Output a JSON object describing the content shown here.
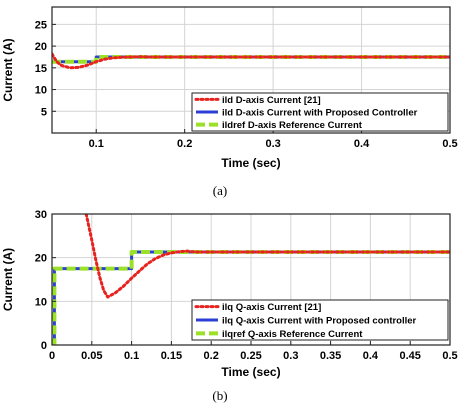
{
  "chart_data": [
    {
      "type": "line",
      "caption": "(a)",
      "xlabel": "Time (sec)",
      "ylabel": "Current (A)",
      "xlim": [
        0.05,
        0.5
      ],
      "ylim": [
        0,
        29
      ],
      "xticks": [
        0.1,
        0.2,
        0.3,
        0.4,
        0.5
      ],
      "xtick_labels": [
        "0.1",
        "0.2",
        "0.3",
        "0.4",
        "0.5"
      ],
      "yticks": [
        5,
        10,
        15,
        20,
        25
      ],
      "ytick_labels": [
        "5",
        "10",
        "15",
        "20",
        "25"
      ],
      "grid": true,
      "legend_position": "bottom-right",
      "series": [
        {
          "name": "ild D-axis Current [21]",
          "color": "#e8231f",
          "style": "dotted",
          "x": [
            0.05,
            0.055,
            0.06,
            0.07,
            0.08,
            0.09,
            0.1,
            0.11,
            0.12,
            0.13,
            0.14,
            0.15,
            0.16,
            0.18,
            0.2,
            0.5
          ],
          "y": [
            18.2,
            16.5,
            15.6,
            15.0,
            15.1,
            15.6,
            16.4,
            17.0,
            17.3,
            17.45,
            17.5,
            17.55,
            17.5,
            17.5,
            17.5,
            17.5
          ]
        },
        {
          "name": "ild D-axis Current with Proposed Controller",
          "color": "#2b3fd6",
          "style": "solid",
          "x": [
            0.05,
            0.1,
            0.1,
            0.5
          ],
          "y": [
            16.4,
            16.4,
            17.5,
            17.5
          ]
        },
        {
          "name": "ildref D-axis Reference Current",
          "color": "#9be12a",
          "style": "dashed",
          "x": [
            0.05,
            0.1,
            0.1,
            0.5
          ],
          "y": [
            16.4,
            16.4,
            17.5,
            17.5
          ]
        }
      ]
    },
    {
      "type": "line",
      "caption": "(b)",
      "xlabel": "Time (sec)",
      "ylabel": "Current (A)",
      "xlim": [
        0,
        0.5
      ],
      "ylim": [
        0,
        30
      ],
      "xticks": [
        0,
        0.05,
        0.1,
        0.15,
        0.2,
        0.25,
        0.3,
        0.35,
        0.4,
        0.45,
        0.5
      ],
      "xtick_labels": [
        "0",
        "0.05",
        "0.1",
        "0.15",
        "0.2",
        "0.25",
        "0.3",
        "0.35",
        "0.4",
        "0.45",
        "0.5"
      ],
      "yticks": [
        0,
        10,
        20,
        30
      ],
      "ytick_labels": [
        "0",
        "10",
        "20",
        "30"
      ],
      "grid": true,
      "legend_position": "bottom-right",
      "series": [
        {
          "name": "ilq Q-axis Current [21]",
          "color": "#e8231f",
          "style": "dotted",
          "x": [
            0.043,
            0.05,
            0.055,
            0.06,
            0.065,
            0.07,
            0.08,
            0.09,
            0.1,
            0.11,
            0.12,
            0.13,
            0.14,
            0.15,
            0.16,
            0.17,
            0.18,
            0.5
          ],
          "y": [
            30,
            24.0,
            19.5,
            15.5,
            12.5,
            11.0,
            12.0,
            13.5,
            15.3,
            17.0,
            18.6,
            19.8,
            20.6,
            21.1,
            21.4,
            21.5,
            21.3,
            21.3
          ]
        },
        {
          "name": "ilq Q-axis Current with Proposed controller",
          "color": "#2b3fd6",
          "style": "solid",
          "x": [
            0,
            0.003,
            0.003,
            0.1,
            0.1,
            0.5
          ],
          "y": [
            0,
            0,
            17.5,
            17.5,
            21.3,
            21.3
          ]
        },
        {
          "name": "ilqref Q-axis  Reference Current",
          "color": "#9be12a",
          "style": "dashed",
          "x": [
            0,
            0.003,
            0.003,
            0.1,
            0.1,
            0.5
          ],
          "y": [
            0,
            0,
            17.5,
            17.5,
            21.3,
            21.3
          ]
        }
      ]
    }
  ]
}
